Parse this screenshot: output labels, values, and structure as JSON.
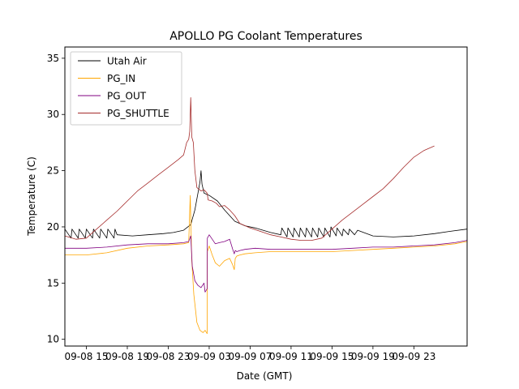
{
  "chart_data": {
    "type": "line",
    "title": "APOLLO PG Coolant Temperatures",
    "xlabel": "Date (GMT)",
    "ylabel": "Temperature (C)",
    "grid": false,
    "legend_position": "top-left",
    "xlim": [
      12.9,
      52.2
    ],
    "ylim": [
      9.4,
      36.0
    ],
    "x_unit": "hours since 2019-09-08 00:00 GMT",
    "xticks": [
      {
        "value": 15,
        "label": "09-08 15"
      },
      {
        "value": 19,
        "label": "09-08 19"
      },
      {
        "value": 23,
        "label": "09-08 23"
      },
      {
        "value": 27,
        "label": "09-09 03"
      },
      {
        "value": 31,
        "label": "09-09 07"
      },
      {
        "value": 35,
        "label": "09-09 11"
      },
      {
        "value": 39,
        "label": "09-09 15"
      },
      {
        "value": 43,
        "label": "09-09 19"
      },
      {
        "value": 47,
        "label": "09-09 23"
      }
    ],
    "yticks": [
      {
        "value": 10,
        "label": "10"
      },
      {
        "value": 15,
        "label": "15"
      },
      {
        "value": 20,
        "label": "20"
      },
      {
        "value": 25,
        "label": "25"
      },
      {
        "value": 30,
        "label": "30"
      },
      {
        "value": 35,
        "label": "35"
      }
    ],
    "series": [
      {
        "name": "Utah Air",
        "color": "#000000",
        "x": [
          12.9,
          13.5,
          13.6,
          14.2,
          14.3,
          14.9,
          15.0,
          15.6,
          15.7,
          16.3,
          16.4,
          17.0,
          17.1,
          17.7,
          17.8,
          18.0,
          19.5,
          21.0,
          22.5,
          23.5,
          24.0,
          24.5,
          25.2,
          25.6,
          25.9,
          26.1,
          26.2,
          26.3,
          26.5,
          27.0,
          27.8,
          28.5,
          29.5,
          30.5,
          31.5,
          33.0,
          34.0,
          34.1,
          34.6,
          34.7,
          35.2,
          35.3,
          35.8,
          35.9,
          36.4,
          36.5,
          37.0,
          37.1,
          37.6,
          37.7,
          38.2,
          38.3,
          38.8,
          38.9,
          39.4,
          39.5,
          40.0,
          40.1,
          40.6,
          40.7,
          41.2,
          41.5,
          43.0,
          45.0,
          47.0,
          49.0,
          50.5,
          52.2
        ],
        "values": [
          19.8,
          19.0,
          19.8,
          19.0,
          19.8,
          19.0,
          19.8,
          19.0,
          19.8,
          19.0,
          19.8,
          19.0,
          19.8,
          19.0,
          19.8,
          19.3,
          19.2,
          19.3,
          19.4,
          19.5,
          19.6,
          19.7,
          20.2,
          21.5,
          23.0,
          24.0,
          25.0,
          23.8,
          23.0,
          22.8,
          22.3,
          21.5,
          20.5,
          20.1,
          19.9,
          19.5,
          19.3,
          19.9,
          19.1,
          19.9,
          19.1,
          19.9,
          19.1,
          19.9,
          19.1,
          19.9,
          19.1,
          19.9,
          19.1,
          19.9,
          19.1,
          19.9,
          19.1,
          20.0,
          19.2,
          19.9,
          19.2,
          19.8,
          19.3,
          19.8,
          19.3,
          19.7,
          19.2,
          19.1,
          19.2,
          19.4,
          19.6,
          19.8
        ]
      },
      {
        "name": "PG_IN",
        "color": "#ffa500",
        "x": [
          12.9,
          15.0,
          17.0,
          19.0,
          21.0,
          23.0,
          24.5,
          25.0,
          25.15,
          25.3,
          25.5,
          25.8,
          26.1,
          26.4,
          26.6,
          26.8,
          26.82,
          27.0,
          27.3,
          27.6,
          28.0,
          28.5,
          29.0,
          29.3,
          29.45,
          29.55,
          29.7,
          30.0,
          30.5,
          31.5,
          33.0,
          35.0,
          37.0,
          39.0,
          41.0,
          43.0,
          45.0,
          47.0,
          49.0,
          51.0,
          52.2
        ],
        "values": [
          17.5,
          17.5,
          17.7,
          18.1,
          18.3,
          18.4,
          18.5,
          18.6,
          22.8,
          17.0,
          14.0,
          11.5,
          10.8,
          10.6,
          10.8,
          10.5,
          17.8,
          18.3,
          17.5,
          16.8,
          16.5,
          17.0,
          17.2,
          16.6,
          16.2,
          17.2,
          17.4,
          17.5,
          17.6,
          17.7,
          17.8,
          17.8,
          17.8,
          17.8,
          17.9,
          18.0,
          18.1,
          18.2,
          18.3,
          18.5,
          18.7
        ]
      },
      {
        "name": "PG_OUT",
        "color": "#800080",
        "x": [
          12.9,
          15.0,
          17.0,
          19.0,
          21.0,
          23.0,
          24.5,
          25.0,
          25.2,
          25.35,
          25.6,
          25.9,
          26.2,
          26.5,
          26.6,
          26.8,
          26.82,
          27.0,
          27.3,
          27.6,
          28.0,
          28.5,
          29.0,
          29.3,
          29.45,
          29.55,
          29.7,
          30.0,
          30.5,
          31.5,
          33.0,
          35.0,
          37.0,
          39.0,
          41.0,
          43.0,
          45.0,
          47.0,
          49.0,
          51.0,
          52.2
        ],
        "values": [
          18.1,
          18.1,
          18.2,
          18.4,
          18.5,
          18.5,
          18.6,
          18.7,
          19.2,
          16.5,
          15.2,
          14.8,
          14.6,
          15.0,
          14.2,
          14.5,
          19.0,
          19.3,
          18.9,
          18.5,
          18.6,
          18.7,
          18.9,
          18.0,
          17.6,
          17.9,
          17.8,
          17.9,
          18.0,
          18.1,
          18.0,
          18.0,
          18.0,
          18.0,
          18.1,
          18.2,
          18.2,
          18.3,
          18.4,
          18.6,
          18.8
        ]
      },
      {
        "name": "PG_SHUTTLE",
        "color": "#a52a2a",
        "x": [
          12.9,
          14.0,
          15.0,
          16.0,
          17.0,
          18.0,
          19.0,
          20.0,
          21.0,
          22.0,
          23.0,
          24.0,
          24.5,
          24.8,
          25.0,
          25.1,
          25.2,
          25.3,
          25.45,
          25.6,
          25.8,
          26.2,
          26.5,
          26.8,
          26.9,
          27.3,
          27.7,
          28.0,
          28.5,
          29.0,
          29.5,
          30.0,
          31.0,
          32.0,
          33.0,
          34.0,
          35.0,
          36.0,
          37.0,
          38.0,
          39.0,
          40.0,
          41.0,
          42.0,
          43.0,
          44.0,
          45.0,
          46.0,
          47.0,
          48.0,
          49.0,
          50.0,
          51.0,
          52.2
        ],
        "values": [
          19.2,
          18.9,
          19.0,
          19.8,
          20.6,
          21.4,
          22.3,
          23.2,
          23.9,
          24.6,
          25.3,
          26.0,
          26.4,
          27.5,
          27.8,
          28.5,
          31.5,
          28.0,
          27.5,
          25.0,
          23.5,
          23.2,
          23.3,
          23.0,
          22.4,
          22.3,
          22.1,
          21.8,
          21.9,
          21.5,
          21.0,
          20.3,
          19.9,
          19.6,
          19.3,
          19.1,
          18.9,
          18.8,
          18.8,
          19.0,
          19.8,
          20.6,
          21.3,
          22.0,
          22.7,
          23.4,
          24.3,
          25.3,
          26.2,
          26.8,
          27.2,
          null,
          null,
          null
        ]
      }
    ]
  }
}
